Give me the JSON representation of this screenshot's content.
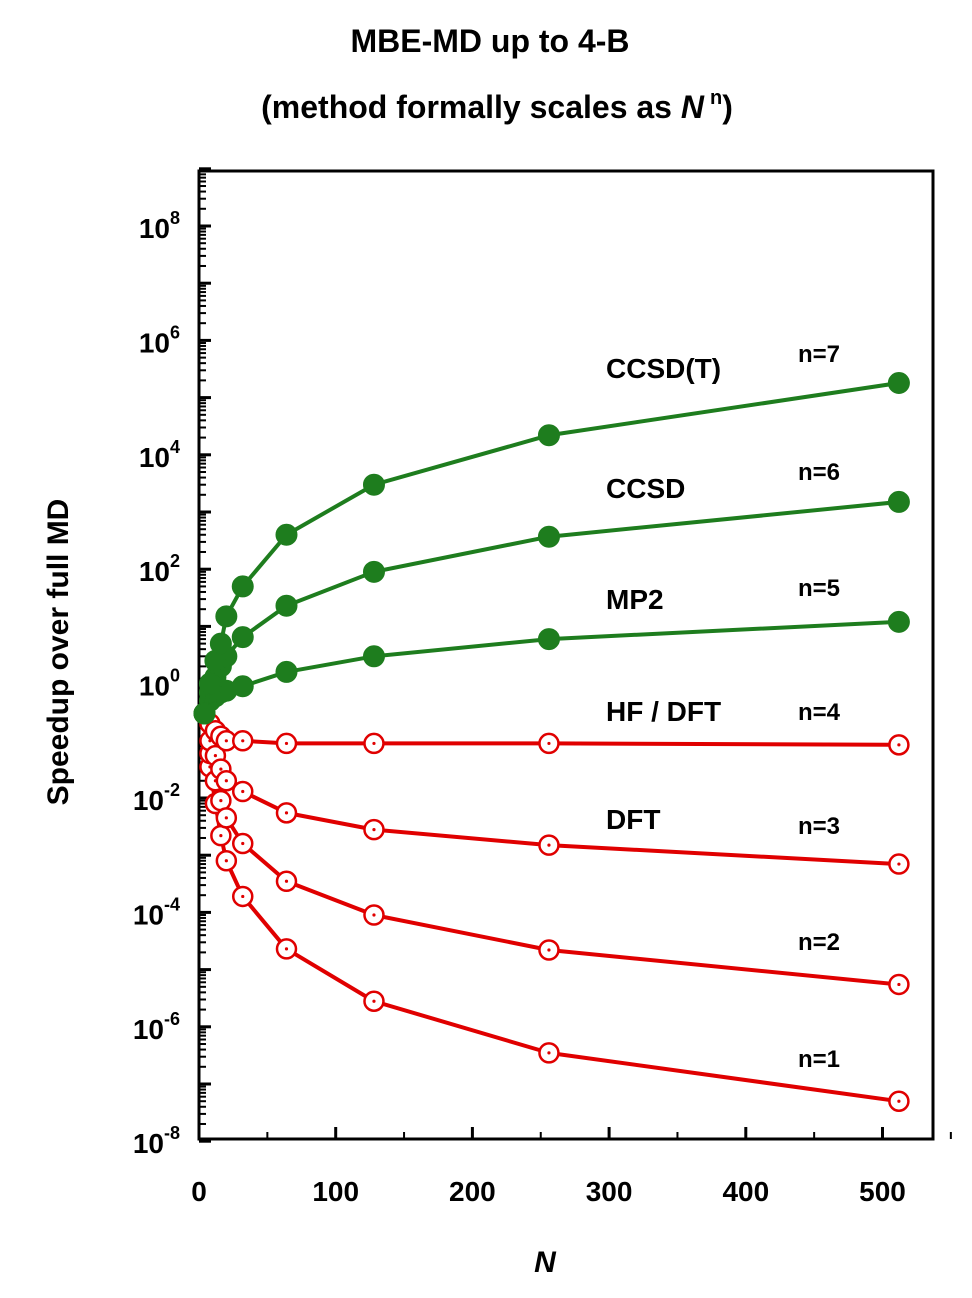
{
  "chart_data": {
    "type": "line",
    "title_line1": "MBE-MD up to 4-B",
    "title_line2_prefix": "(method formally scales as ",
    "title_line2_var": "N",
    "title_line2_sup": "n",
    "title_line2_suffix": ")",
    "xlabel": "N",
    "ylabel": "Speedup over full MD",
    "xlim": [
      0,
      550
    ],
    "ylim_exp": [
      -8,
      10
    ],
    "yscale": "log",
    "grid": false,
    "xticks": [
      0,
      100,
      200,
      300,
      400,
      500
    ],
    "yticks_exp": [
      -8,
      -6,
      -4,
      -2,
      0,
      2,
      4,
      6,
      8
    ],
    "y_tick_base": "10",
    "colors": {
      "increasing": "#1e7d1e",
      "decreasing": "#e00000"
    },
    "method_labels": [
      {
        "text": "CCSD(T)",
        "series": "n=7"
      },
      {
        "text": "CCSD",
        "series": "n=6"
      },
      {
        "text": "MP2",
        "series": "n=5"
      },
      {
        "text": "HF / DFT",
        "series": "n=4"
      },
      {
        "text": "DFT",
        "series": "n=3"
      }
    ],
    "series": [
      {
        "name": "n=7",
        "marker": "filled",
        "color": "#1e7d1e",
        "x": [
          4,
          8,
          12,
          16,
          20,
          32,
          64,
          128,
          256,
          512
        ],
        "y": [
          0.3,
          1.0,
          2.5,
          5,
          15,
          50,
          400,
          3000,
          22000,
          180000
        ]
      },
      {
        "name": "n=6",
        "marker": "filled",
        "color": "#1e7d1e",
        "x": [
          4,
          8,
          12,
          16,
          20,
          32,
          64,
          128,
          256,
          512
        ],
        "y": [
          0.3,
          0.7,
          1.3,
          2.0,
          3.0,
          6.5,
          23,
          90,
          370,
          1500
        ]
      },
      {
        "name": "n=5",
        "marker": "filled",
        "color": "#1e7d1e",
        "x": [
          4,
          8,
          12,
          16,
          20,
          32,
          64,
          128,
          256,
          512
        ],
        "y": [
          0.3,
          0.5,
          0.6,
          0.7,
          0.75,
          0.9,
          1.6,
          3.0,
          6.0,
          12
        ]
      },
      {
        "name": "n=4",
        "marker": "open",
        "color": "#e00000",
        "x": [
          4,
          8,
          12,
          16,
          20,
          32,
          64,
          128,
          256,
          512
        ],
        "y": [
          0.3,
          0.2,
          0.15,
          0.12,
          0.1,
          0.1,
          0.09,
          0.09,
          0.09,
          0.085
        ]
      },
      {
        "name": "n=3",
        "marker": "open",
        "color": "#e00000",
        "x": [
          4,
          8,
          12,
          16,
          20,
          32,
          64,
          128,
          256,
          512
        ],
        "y": [
          0.3,
          0.1,
          0.055,
          0.032,
          0.02,
          0.013,
          0.0055,
          0.0028,
          0.0015,
          0.0007
        ]
      },
      {
        "name": "n=2",
        "marker": "open",
        "color": "#e00000",
        "x": [
          4,
          8,
          12,
          16,
          20,
          32,
          64,
          128,
          256,
          512
        ],
        "y": [
          0.3,
          0.06,
          0.02,
          0.009,
          0.0045,
          0.0016,
          0.00035,
          9e-05,
          2.2e-05,
          5.5e-06
        ]
      },
      {
        "name": "n=1",
        "marker": "open",
        "color": "#e00000",
        "x": [
          4,
          8,
          12,
          16,
          20,
          32,
          64,
          128,
          256,
          512
        ],
        "y": [
          0.3,
          0.035,
          0.008,
          0.0022,
          0.0008,
          0.00019,
          2.3e-05,
          2.8e-06,
          3.5e-07,
          5e-08
        ]
      }
    ]
  }
}
